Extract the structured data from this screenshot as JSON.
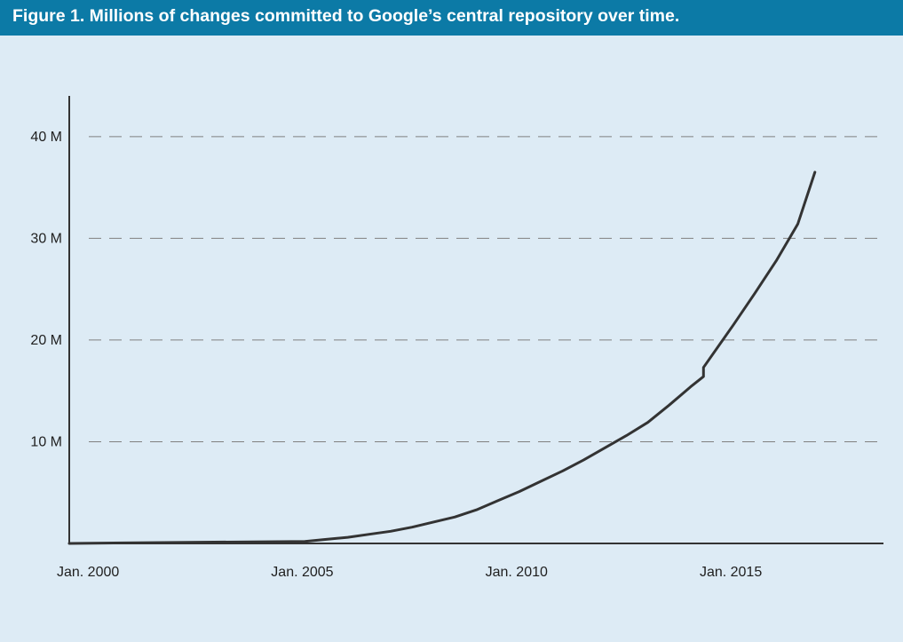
{
  "header": {
    "title": "Figure 1. Millions of changes committed to Google’s central repository over time."
  },
  "colors": {
    "header_bg": "#0c7aa6",
    "plot_bg": "#ddebf5",
    "line": "#333333",
    "grid": "#808080"
  },
  "chart_data": {
    "type": "line",
    "title": "Figure 1. Millions of changes committed to Google’s central repository over time.",
    "xlabel": "",
    "ylabel": "",
    "x_ticks": [
      {
        "value": 2000,
        "label": "Jan. 2000"
      },
      {
        "value": 2005,
        "label": "Jan. 2005"
      },
      {
        "value": 2010,
        "label": "Jan. 2010"
      },
      {
        "value": 2015,
        "label": "Jan. 2015"
      }
    ],
    "y_ticks": [
      {
        "value": 10,
        "label": "10 M"
      },
      {
        "value": 20,
        "label": "20 M"
      },
      {
        "value": 30,
        "label": "30 M"
      },
      {
        "value": 40,
        "label": "40 M"
      }
    ],
    "xlim": [
      1999.5,
      2018.5
    ],
    "ylim": [
      0,
      44
    ],
    "grid": "horizontal dashed",
    "series": [
      {
        "x": [
          1999.5,
          2002.0,
          2005.0,
          2005.5,
          2006.0,
          2006.5,
          2007.0,
          2007.5,
          2008.0,
          2008.5,
          2009.0,
          2009.5,
          2010.0,
          2010.5,
          2011.0,
          2011.5,
          2012.0,
          2012.5,
          2013.0,
          2013.5,
          2014.0,
          2014.3,
          2014.3,
          2015.0,
          2015.5,
          2016.0,
          2016.5,
          2016.9
        ],
        "y": [
          0,
          0.1,
          0.2,
          0.4,
          0.6,
          0.9,
          1.2,
          1.6,
          2.1,
          2.6,
          3.3,
          4.2,
          5.1,
          6.1,
          7.1,
          8.2,
          9.4,
          10.6,
          11.9,
          13.6,
          15.4,
          16.4,
          17.3,
          21.5,
          24.6,
          27.8,
          31.4,
          36.5
        ]
      }
    ]
  }
}
